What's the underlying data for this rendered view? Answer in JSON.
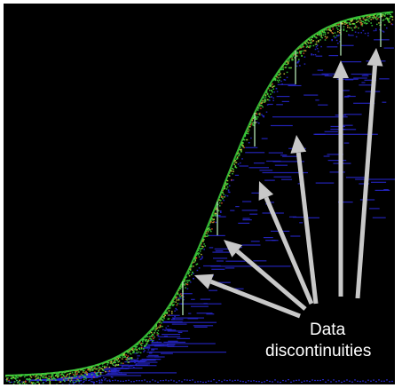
{
  "chart_data": {
    "type": "scatter",
    "title": "",
    "xlabel": "",
    "ylabel": "",
    "grid": false,
    "background": "#000000",
    "colors": {
      "dense": "#3cd23c",
      "mid": "#c8c83c",
      "hot": "#dc5028",
      "sparse": "#2828d2",
      "arrow": "#c8c8c8"
    },
    "annotation": {
      "text_lines": [
        "Data",
        "discontinuities"
      ],
      "arrow_count": 6
    }
  }
}
